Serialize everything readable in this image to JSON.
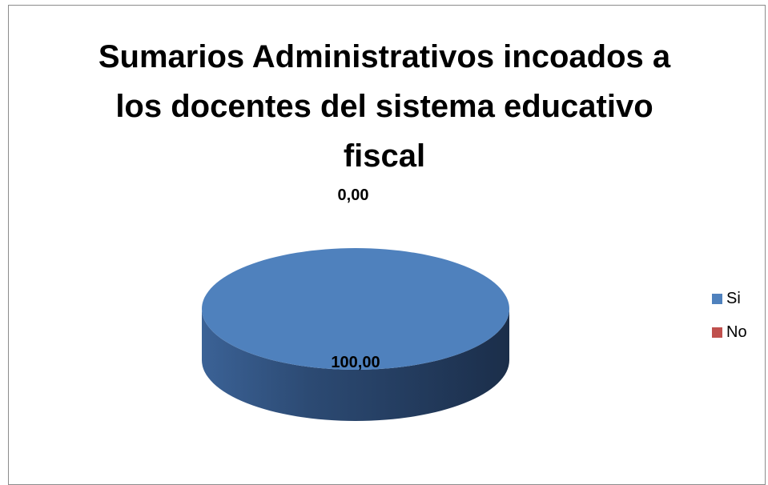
{
  "chart_data": {
    "type": "pie",
    "title_lines": [
      "Sumarios Administrativos incoados a",
      "los docentes del sistema educativo",
      "fiscal"
    ],
    "categories": [
      "Si",
      "No"
    ],
    "values": [
      100,
      0
    ],
    "data_labels": [
      "100,00",
      "0,00"
    ],
    "colors": [
      "#4F81BD",
      "#C0504D"
    ],
    "style": "3d",
    "legend_position": "right"
  }
}
